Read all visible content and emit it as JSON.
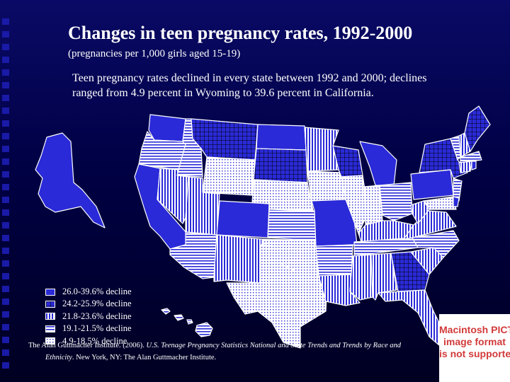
{
  "title": "Changes in teen pregnancy rates, 1992-2000",
  "subtitle": "(pregnancies per 1,000 girls aged 15-19)",
  "intro": "Teen pregnancy rates declined in every state between 1992 and 2000; declines ranged from 4.9 percent in Wyoming to 39.6 percent in California.",
  "legend": [
    {
      "label": "26.0-39.6% decline",
      "pattern": "solid"
    },
    {
      "label": "24.2-25.9% decline",
      "pattern": "grid"
    },
    {
      "label": "21.8-23.6% decline",
      "pattern": "vertical"
    },
    {
      "label": "19.1-21.5% decline",
      "pattern": "horizontal"
    },
    {
      "label": "4.9-18.5% decline",
      "pattern": "dots"
    }
  ],
  "pict_placeholder": {
    "line1": "Macintosh PICT",
    "line2": "image format",
    "line3": "is not supported"
  },
  "citation": {
    "authors": "The Alan Guttmacher Institute. (2006).",
    "work": "U.S. Teenage Pregnancy Statistics National and State Trends and Trends by Race and",
    "work_cont": "Ethnicity",
    "publisher": ". New York, NY: The Alan Guttmacher Institute."
  },
  "colors": {
    "solid": "#2a2ad8",
    "line": "#ffffff",
    "background": "#000044"
  }
}
